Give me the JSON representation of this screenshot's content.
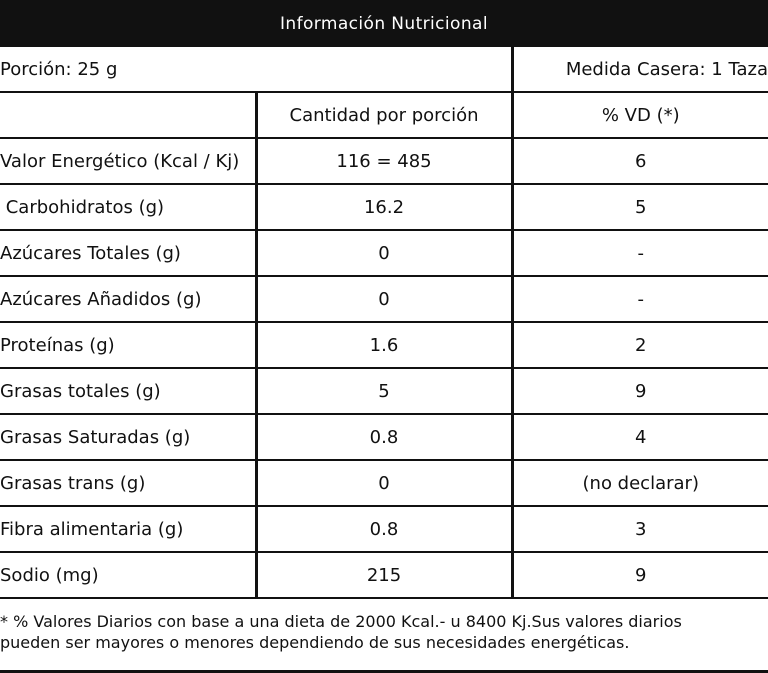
{
  "title": "Información Nutricional",
  "portion": {
    "serving": "Porción: 25 g",
    "household": "Medida Casera: 1 Taza"
  },
  "columns": {
    "amount": "Cantidad por porción",
    "dv": "% VD (*)"
  },
  "rows": [
    {
      "name": "Valor Energético (Kcal / Kj)",
      "amount": "116 = 485",
      "dv": "6"
    },
    {
      "name": " Carbohidratos (g)",
      "amount": "16.2",
      "dv": "5"
    },
    {
      "name": "Azúcares Totales (g)",
      "amount": "0",
      "dv": "-"
    },
    {
      "name": "Azúcares Añadidos (g)",
      "amount": "0",
      "dv": "-"
    },
    {
      "name": "Proteínas (g)",
      "amount": "1.6",
      "dv": "2"
    },
    {
      "name": "Grasas totales (g)",
      "amount": "5",
      "dv": "9"
    },
    {
      "name": "Grasas Saturadas (g)",
      "amount": "0.8",
      "dv": "4"
    },
    {
      "name": "Grasas trans (g)",
      "amount": "0",
      "dv": "(no declarar)"
    },
    {
      "name": "Fibra alimentaria (g)",
      "amount": "0.8",
      "dv": "3"
    },
    {
      "name": "Sodio (mg)",
      "amount": "215",
      "dv": "9"
    }
  ],
  "footnote": {
    "line1": "* % Valores Diarios con base a una dieta de 2000 Kcal.- u 8400 Kj.Sus valores diarios",
    "line2": "pueden ser mayores o menores dependiendo de sus necesidades energéticas."
  }
}
